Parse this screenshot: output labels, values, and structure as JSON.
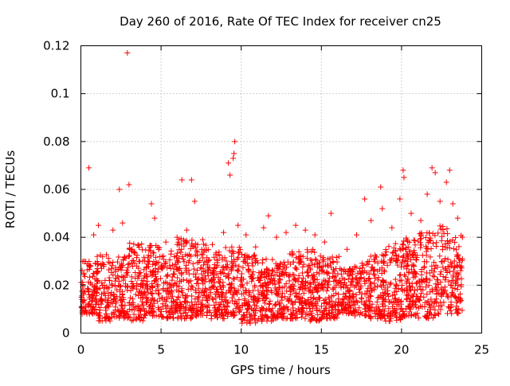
{
  "chart_data": {
    "type": "scatter",
    "title": "Day 260 of 2016, Rate Of TEC Index for receiver cn25",
    "xlabel": "GPS time / hours",
    "ylabel": "ROTI / TECUs",
    "xlim": [
      0,
      25
    ],
    "ylim": [
      0,
      0.12
    ],
    "x_ticks": [
      0,
      5,
      10,
      15,
      20,
      25
    ],
    "x_tick_labels": [
      "0",
      "5",
      "10",
      "15",
      "20",
      "25"
    ],
    "y_ticks": [
      0,
      0.02,
      0.04,
      0.06,
      0.08,
      0.1,
      0.12
    ],
    "y_tick_labels": [
      "0",
      "0.02",
      "0.04",
      "0.06",
      "0.08",
      "0.1",
      "0.12"
    ],
    "grid": true,
    "marker": "+",
    "color": "#ff0000",
    "series": [
      {
        "name": "ROTI",
        "x": [
          2.9,
          0.5,
          9.6,
          9.55,
          9.5,
          9.2,
          9.3,
          6.3,
          6.9,
          7.1,
          3.0,
          2.4,
          1.1,
          4.4,
          11.7,
          15.6,
          17.7,
          18.7,
          20.1,
          20.15,
          21.9,
          22.1,
          22.8,
          23.0,
          23.5,
          0.2,
          0.8,
          2.0,
          2.6,
          3.2,
          4.6,
          5.3,
          6.0,
          6.6,
          7.6,
          8.2,
          8.9,
          9.8,
          10.3,
          10.9,
          11.4,
          12.2,
          12.8,
          13.4,
          14.0,
          14.6,
          15.2,
          16.1,
          16.6,
          17.2,
          18.1,
          18.8,
          19.4,
          19.9,
          20.6,
          21.2,
          21.6,
          22.4,
          23.2,
          23.8
        ],
        "y": [
          0.117,
          0.069,
          0.08,
          0.075,
          0.073,
          0.071,
          0.066,
          0.064,
          0.064,
          0.055,
          0.062,
          0.06,
          0.045,
          0.054,
          0.049,
          0.05,
          0.056,
          0.061,
          0.068,
          0.065,
          0.069,
          0.067,
          0.063,
          0.068,
          0.048,
          0.03,
          0.041,
          0.043,
          0.046,
          0.035,
          0.048,
          0.038,
          0.04,
          0.043,
          0.039,
          0.037,
          0.042,
          0.045,
          0.041,
          0.036,
          0.044,
          0.04,
          0.042,
          0.045,
          0.043,
          0.041,
          0.038,
          0.032,
          0.035,
          0.041,
          0.047,
          0.052,
          0.044,
          0.056,
          0.05,
          0.047,
          0.058,
          0.055,
          0.054,
          0.04
        ],
        "density_profile_note": "dense cloud of points spanning 0 to 23.8 hours, mostly between 0.005 and 0.035 TECU",
        "band": {
          "x_start": 0,
          "x_end": 23.8,
          "y_low": [
            0.008,
            0.005,
            0.006,
            0.005,
            0.007,
            0.006,
            0.006,
            0.007,
            0.006,
            0.007,
            0.004,
            0.005,
            0.006,
            0.006,
            0.005,
            0.006,
            0.008,
            0.007,
            0.006,
            0.005,
            0.007,
            0.006,
            0.007,
            0.008,
            0.008
          ],
          "y_high": [
            0.03,
            0.033,
            0.032,
            0.038,
            0.037,
            0.035,
            0.04,
            0.038,
            0.034,
            0.036,
            0.033,
            0.031,
            0.03,
            0.034,
            0.035,
            0.032,
            0.027,
            0.03,
            0.033,
            0.038,
            0.04,
            0.043,
            0.045,
            0.041,
            0.035
          ]
        }
      }
    ]
  }
}
